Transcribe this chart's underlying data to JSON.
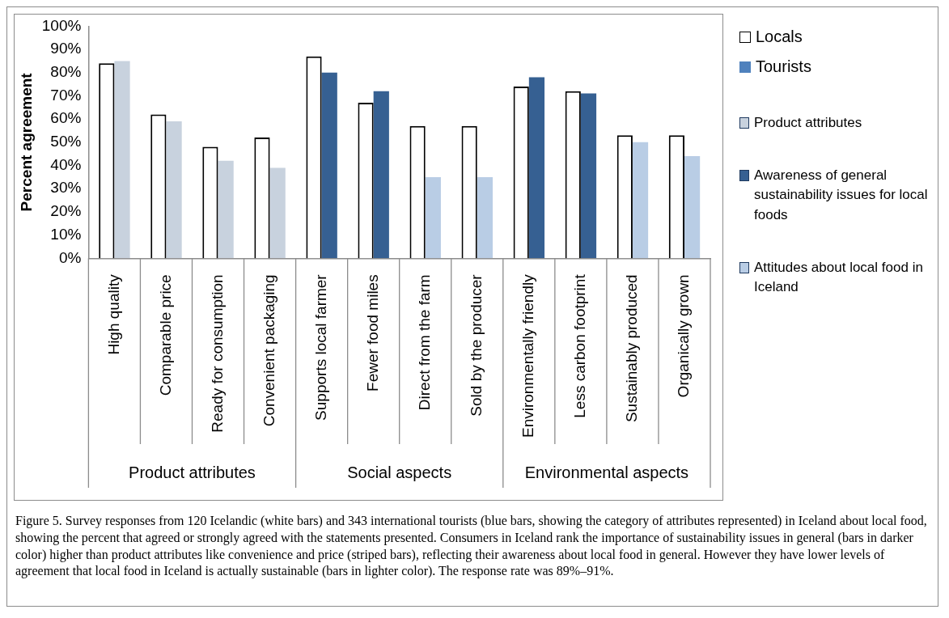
{
  "chart_data": {
    "type": "bar",
    "ylabel": "Percent agreement",
    "categories": [
      "High quality",
      "Comparable price",
      "Ready for consumption",
      "Convenient packaging",
      "Supports local farmer",
      "Fewer food miles",
      "Direct from the farm",
      "Sold by the producer",
      "Environmentally friendly",
      "Less carbon footprint",
      "Sustainably produced",
      "Organically grown"
    ],
    "series": [
      {
        "name": "Locals",
        "color": "#ffffff",
        "values": [
          84,
          62,
          48,
          52,
          87,
          67,
          57,
          57,
          74,
          72,
          53,
          53
        ]
      },
      {
        "name": "Tourists",
        "color": "#4f81bd",
        "colors": [
          "#c8d2de",
          "#c8d2de",
          "#c8d2de",
          "#c8d2de",
          "#366092",
          "#366092",
          "#b9cde5",
          "#b9cde5",
          "#366092",
          "#366092",
          "#b9cde5",
          "#b9cde5"
        ],
        "values": [
          85,
          59,
          42,
          39,
          80,
          72,
          35,
          35,
          78,
          71,
          50,
          44
        ]
      }
    ],
    "ylim": [
      0,
      100
    ],
    "yticks": [
      {
        "value": 0,
        "label": "0%"
      },
      {
        "value": 10,
        "label": "10%"
      },
      {
        "value": 20,
        "label": "20%"
      },
      {
        "value": 30,
        "label": "30%"
      },
      {
        "value": 40,
        "label": "40%"
      },
      {
        "value": 50,
        "label": "50%"
      },
      {
        "value": 60,
        "label": "60%"
      },
      {
        "value": 70,
        "label": "70%"
      },
      {
        "value": 80,
        "label": "80%"
      },
      {
        "value": 90,
        "label": "90%"
      },
      {
        "value": 100,
        "label": "100%"
      }
    ],
    "legend": "right",
    "annotations": [
      "Product attributes",
      "Social aspects",
      "Environmental aspects",
      "Product attributes",
      "Awareness of general sustainability issues for local foods",
      "Attitudes about local food in Iceland",
      "Figure 5. Survey responses from 120 Icelandic (white bars) and 343 international tourists (blue bars, showing the category of attributes represented) in Iceland about local food, showing the percent that agreed or strongly agreed with the statements presented. Consumers in Iceland rank the importance of sustainability issues in general (bars in darker color) higher than product attributes like convenience and price (striped bars), reflecting their awareness about local food in general. However they have lower levels of agreement that local food in Iceland is actually sustainable (bars in lighter color). The response rate was 89%–91%."
    ]
  }
}
